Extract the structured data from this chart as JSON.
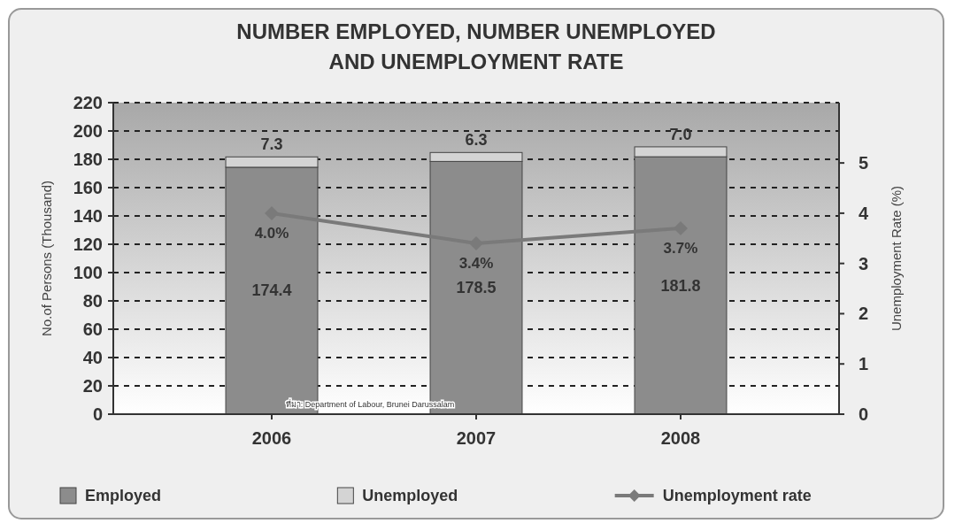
{
  "chart_data": {
    "type": "bar",
    "title": "NUMBER EMPLOYED, NUMBER UNEMPLOYED\nAND UNEMPLOYMENT RATE",
    "ylabel": "No.of Persons (Thousand)",
    "y2label": "Unemployment Rate (%)",
    "categories": [
      "2006",
      "2007",
      "2008"
    ],
    "stacked": true,
    "series": [
      {
        "name": "Employed",
        "color": "#8c8c8c",
        "values": [
          174.4,
          178.5,
          181.8
        ],
        "value_labels": [
          "174.4",
          "178.5",
          "181.8"
        ]
      },
      {
        "name": "Unemployed",
        "color": "#d4d4d4",
        "values": [
          7.3,
          6.3,
          7.0
        ],
        "value_labels": [
          "7.3",
          "6.3",
          "7.0"
        ]
      },
      {
        "name": "Unemployment rate",
        "type": "line",
        "axis": "y2",
        "color": "#7a7a7a",
        "marker": "diamond",
        "values": [
          4.0,
          3.4,
          3.7
        ],
        "value_labels": [
          "4.0%",
          "3.4%",
          "3.7%"
        ]
      }
    ],
    "ylim": [
      0,
      220
    ],
    "yticks": [
      0,
      20,
      40,
      60,
      80,
      100,
      120,
      140,
      160,
      180,
      200,
      220
    ],
    "y2lim": [
      0,
      6.2
    ],
    "y2ticks": [
      0,
      1,
      2,
      3,
      4,
      5
    ],
    "grid": "y",
    "legend": "bottom",
    "annotations": [
      "ที่มา: Department of Labour, Brunei Darussalam"
    ]
  }
}
